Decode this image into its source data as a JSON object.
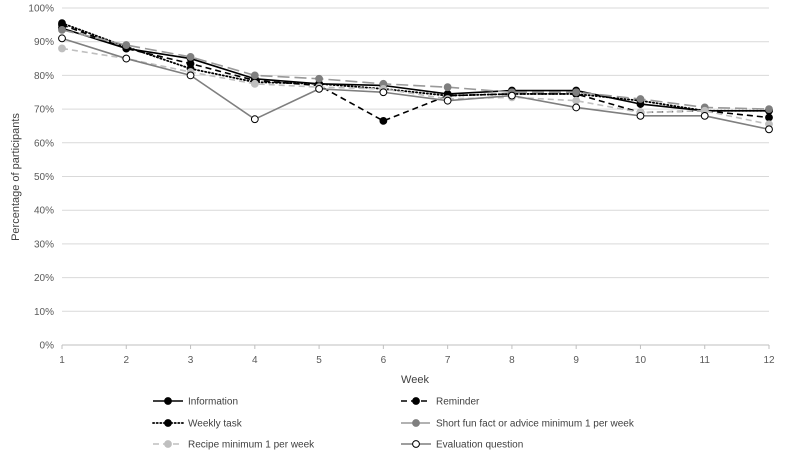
{
  "chart_data": {
    "type": "line",
    "title": "",
    "xlabel": "Week",
    "ylabel": "Percentage of participants",
    "x": [
      1,
      2,
      3,
      4,
      5,
      6,
      7,
      8,
      9,
      10,
      11,
      12
    ],
    "x_tick_labels": [
      "1",
      "2",
      "3",
      "4",
      "5",
      "6",
      "7",
      "8",
      "9",
      "10",
      "11",
      "12"
    ],
    "ylim": [
      0,
      100
    ],
    "y_tick_labels": [
      "0%",
      "10%",
      "20%",
      "30%",
      "40%",
      "50%",
      "60%",
      "70%",
      "80%",
      "90%",
      "100%"
    ],
    "grid": "horizontal",
    "legend_position": "bottom",
    "series": [
      {
        "name": "Information",
        "values": [
          94,
          88,
          85,
          79,
          77.5,
          77,
          74.5,
          75.5,
          75.5,
          71.5,
          69.5,
          69.5
        ],
        "line_color": "#000000",
        "line_style": "solid",
        "marker_fill": "#000000",
        "marker_stroke": "#000000"
      },
      {
        "name": "Reminder",
        "values": [
          95,
          88,
          83.5,
          78.5,
          77,
          66.5,
          74,
          74.5,
          74.5,
          69,
          69.5,
          67.5
        ],
        "line_color": "#000000",
        "line_style": "dashed",
        "marker_fill": "#000000",
        "marker_stroke": "#000000"
      },
      {
        "name": "Weekly task",
        "values": [
          95.5,
          88.5,
          82,
          78,
          77.5,
          76,
          74,
          74.5,
          74.5,
          72.5,
          69.5,
          69.5
        ],
        "line_color": "#000000",
        "line_style": "dotted",
        "marker_fill": "#000000",
        "marker_stroke": "#000000"
      },
      {
        "name": "Short fun fact or advice minimum 1 per week",
        "values": [
          93.5,
          89,
          85.5,
          80,
          79,
          77.5,
          76.5,
          75,
          75,
          73,
          70.5,
          70
        ],
        "line_color": "#999999",
        "line_style": "longdash",
        "marker_fill": "#7f7f7f",
        "marker_stroke": "#7f7f7f"
      },
      {
        "name": "Recipe minimum 1 per week",
        "values": [
          88,
          85,
          81,
          77.5,
          76.5,
          76,
          73,
          73.5,
          72.5,
          69,
          69.5,
          65.5
        ],
        "line_color": "#bfbfbf",
        "line_style": "dashed",
        "marker_fill": "#bfbfbf",
        "marker_stroke": "#bfbfbf"
      },
      {
        "name": "Evaluation question",
        "values": [
          91,
          85,
          80,
          67,
          76,
          75,
          72.5,
          74,
          70.5,
          68,
          68,
          64
        ],
        "line_color": "#7f7f7f",
        "line_style": "solid",
        "marker_fill": "#ffffff",
        "marker_stroke": "#000000"
      }
    ]
  }
}
